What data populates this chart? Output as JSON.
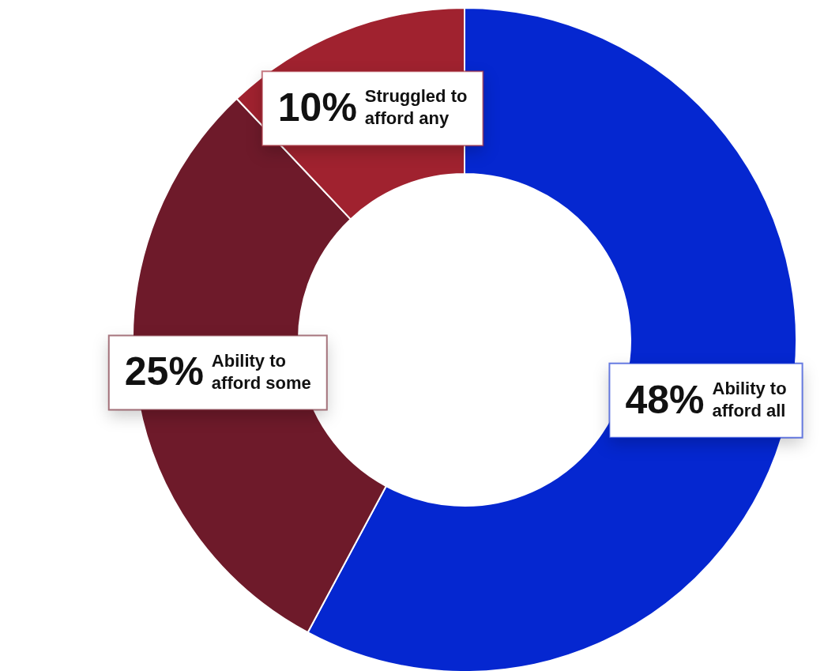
{
  "chart_data": {
    "type": "donut",
    "categories": [
      "Ability to afford all",
      "Ability to afford some",
      "Struggled to afford any"
    ],
    "values": [
      48,
      25,
      10
    ],
    "colors": [
      "#0527d0",
      "#6e1a2a",
      "#a0222f"
    ],
    "value_labels": [
      "48%",
      "25%",
      "10%"
    ],
    "legend": false
  }
}
